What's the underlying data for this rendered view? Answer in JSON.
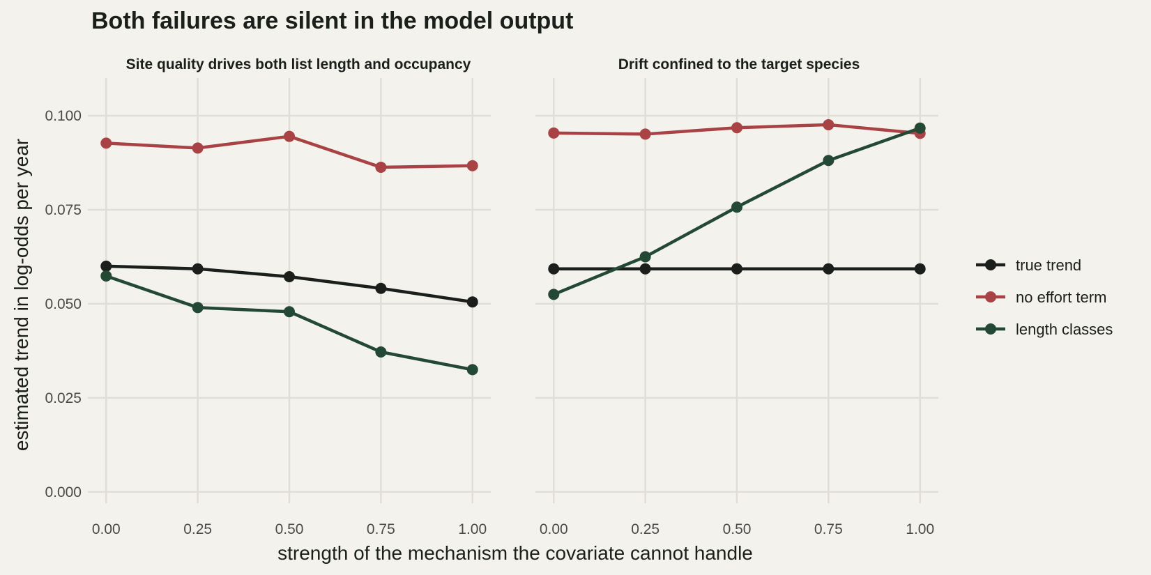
{
  "chart_data": {
    "type": "line",
    "title": "Both failures are silent in the model output",
    "xlabel": "strength of the mechanism the covariate cannot handle",
    "ylabel": "estimated trend in log-odds per year",
    "x": [
      0.0,
      0.25,
      0.5,
      0.75,
      1.0
    ],
    "x_tick_labels": [
      "0.00",
      "0.25",
      "0.50",
      "0.75",
      "1.00"
    ],
    "xlim": [
      -0.05,
      1.05
    ],
    "y_ticks": [
      0.0,
      0.025,
      0.05,
      0.075,
      0.1
    ],
    "y_tick_labels": [
      "0.000",
      "0.025",
      "0.050",
      "0.075",
      "0.100"
    ],
    "ylim": [
      -0.003,
      0.11
    ],
    "grid": true,
    "legend": {
      "placement": "right",
      "entries": [
        {
          "name": "true trend",
          "color": "#1b1f1c"
        },
        {
          "name": "no effort term",
          "color": "#a84244"
        },
        {
          "name": "length classes",
          "color": "#234833"
        }
      ]
    },
    "panels": [
      {
        "title": "Site quality drives both list length and occupancy",
        "series": [
          {
            "name": "true trend",
            "color": "#1b1f1c",
            "values": [
              0.06,
              0.0593,
              0.0572,
              0.0541,
              0.0505
            ]
          },
          {
            "name": "no effort term",
            "color": "#a84244",
            "values": [
              0.0927,
              0.0914,
              0.0945,
              0.0863,
              0.0867
            ]
          },
          {
            "name": "length classes",
            "color": "#234833",
            "values": [
              0.0574,
              0.049,
              0.0479,
              0.0372,
              0.0325
            ]
          }
        ]
      },
      {
        "title": "Drift confined to the target species",
        "series": [
          {
            "name": "true trend",
            "color": "#1b1f1c",
            "values": [
              0.0593,
              0.0593,
              0.0593,
              0.0593,
              0.0593
            ]
          },
          {
            "name": "no effort term",
            "color": "#a84244",
            "values": [
              0.0954,
              0.0951,
              0.0968,
              0.0976,
              0.0953
            ]
          },
          {
            "name": "length classes",
            "color": "#234833",
            "values": [
              0.0525,
              0.0625,
              0.0757,
              0.0881,
              0.0967
            ]
          }
        ]
      }
    ]
  }
}
